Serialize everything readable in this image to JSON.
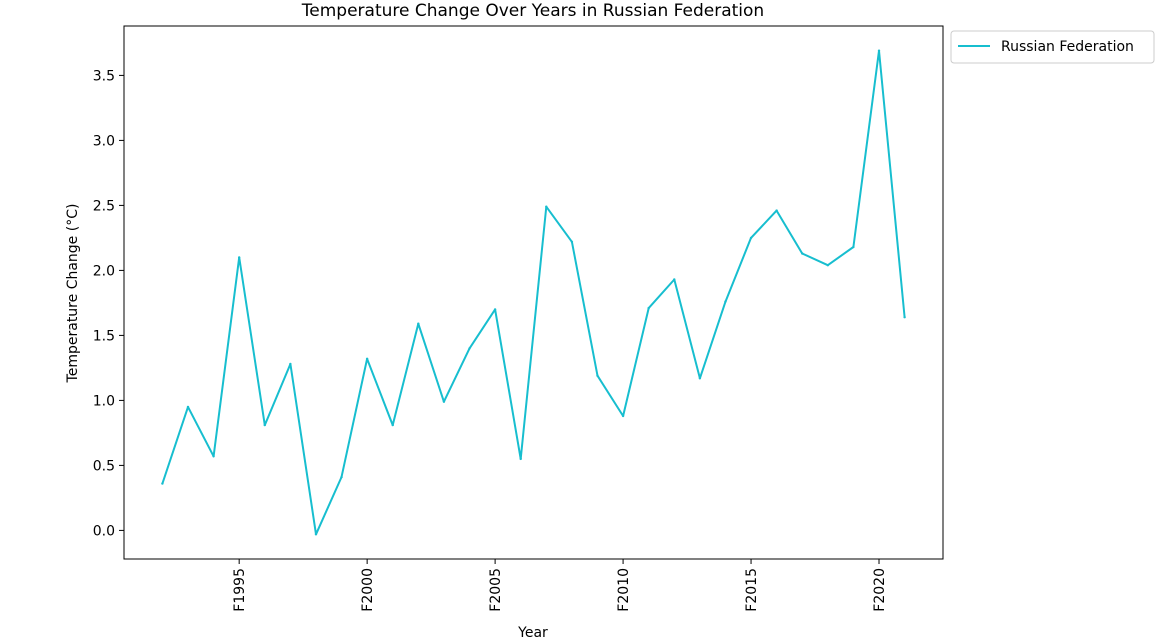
{
  "chart_data": {
    "type": "line",
    "title": "Temperature Change Over Years in Russian Federation",
    "xlabel": "Year",
    "ylabel": "Temperature Change (°C)",
    "x": [
      1992,
      1993,
      1994,
      1995,
      1996,
      1997,
      1998,
      1999,
      2000,
      2001,
      2002,
      2003,
      2004,
      2005,
      2006,
      2007,
      2008,
      2009,
      2010,
      2011,
      2012,
      2013,
      2014,
      2015,
      2016,
      2017,
      2018,
      2019,
      2020,
      2021
    ],
    "series": [
      {
        "name": "Russian Federation",
        "color": "#17becf",
        "values": [
          0.36,
          0.95,
          0.57,
          2.1,
          0.81,
          1.28,
          -0.03,
          0.41,
          1.32,
          0.81,
          1.59,
          0.99,
          1.4,
          1.7,
          0.55,
          2.49,
          2.22,
          1.19,
          0.88,
          1.71,
          1.93,
          1.17,
          1.76,
          2.25,
          2.46,
          2.13,
          2.04,
          2.18,
          3.69,
          1.64
        ]
      }
    ],
    "xticks": [
      1995,
      2000,
      2005,
      2010,
      2015,
      2020
    ],
    "xtick_labels": [
      "F1995",
      "F2000",
      "F2005",
      "F2010",
      "F2015",
      "F2020"
    ],
    "yticks": [
      0.0,
      0.5,
      1.0,
      1.5,
      2.0,
      2.5,
      3.0,
      3.5
    ],
    "ytick_labels": [
      "0.0",
      "0.5",
      "1.0",
      "1.5",
      "2.0",
      "2.5",
      "3.0",
      "3.5"
    ],
    "xlim": [
      1990.5,
      2022.5
    ],
    "ylim": [
      -0.22,
      3.88
    ],
    "grid": false,
    "legend_position": "outside top-right"
  }
}
